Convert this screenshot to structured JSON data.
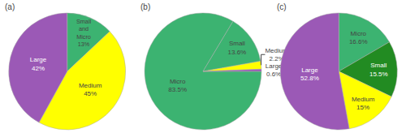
{
  "chart_data": [
    {
      "type": "pie",
      "title": "(a)",
      "categories": [
        "Small and Micro",
        "Medium",
        "Large"
      ],
      "values": [
        13,
        45,
        42
      ],
      "value_labels": [
        "Small\nand\nMicro\n13%",
        "Medium\n45%",
        "Large\n42%"
      ],
      "colors": [
        "#3cb371",
        "#ffff00",
        "#9b59b6"
      ],
      "data_labels": true
    },
    {
      "type": "pie",
      "title": "(b)",
      "categories": [
        "Micro",
        "Small",
        "Medium",
        "Large"
      ],
      "values": [
        83.5,
        13.6,
        2.2,
        0.6
      ],
      "value_labels": [
        "Micro\n83.5%",
        "Small\n13.6%",
        "Medium\n2.2%",
        "Large\n0.6%"
      ],
      "colors": [
        "#3cb371",
        "#3cb371",
        "#ffff00",
        "#9b59b6"
      ],
      "data_labels": true
    },
    {
      "type": "pie",
      "title": "(c)",
      "categories": [
        "Micro",
        "Small",
        "Medium",
        "Large"
      ],
      "values": [
        16.6,
        15.5,
        15.0,
        52.8
      ],
      "value_labels": [
        "Micro\n16.6%",
        "Small\n15.5%",
        "Medium\n15%",
        "Large\n52.8%"
      ],
      "colors": [
        "#3cb371",
        "#228b22",
        "#ffff00",
        "#9b59b6"
      ],
      "data_labels": true
    }
  ]
}
